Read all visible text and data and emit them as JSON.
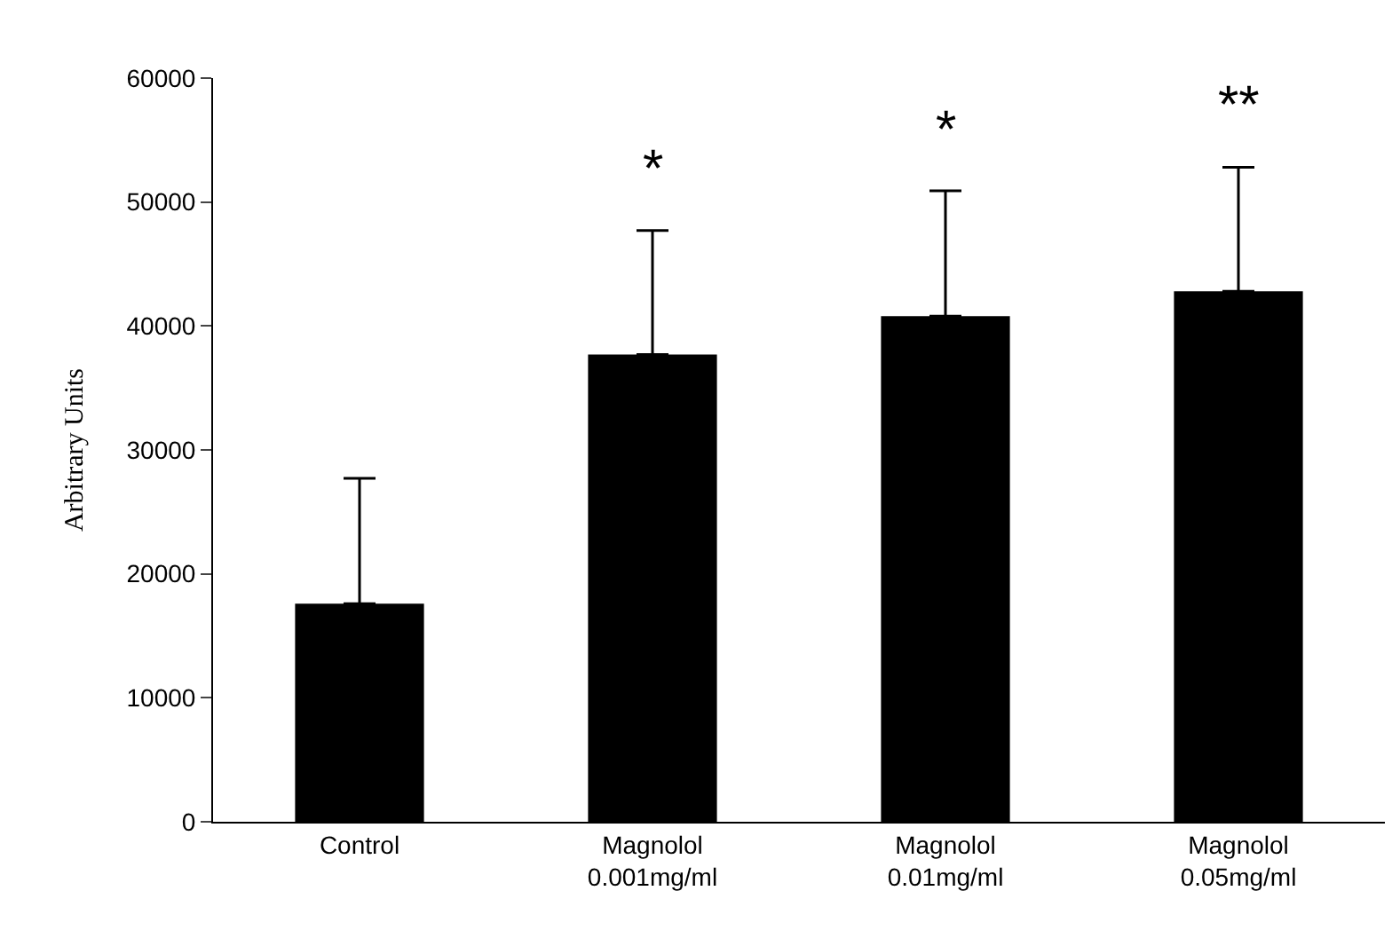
{
  "chart_data": {
    "type": "bar",
    "ylabel": "Arbitrary Units",
    "categories": [
      "Control",
      "Magnolol\n0.001mg/ml",
      "Magnolol\n0.01mg/ml",
      "Magnolol\n0.05mg/ml"
    ],
    "values": [
      17600,
      37700,
      40800,
      42800
    ],
    "errors": [
      [
        17600,
        27700
      ],
      [
        37700,
        47700
      ],
      [
        40800,
        50900
      ],
      [
        42800,
        52800
      ]
    ],
    "color": "#000000",
    "ylim": [
      0,
      60000
    ],
    "yticks": [
      0,
      10000,
      20000,
      30000,
      40000,
      50000,
      60000
    ],
    "annotations": [
      "*",
      "*",
      "**"
    ]
  }
}
